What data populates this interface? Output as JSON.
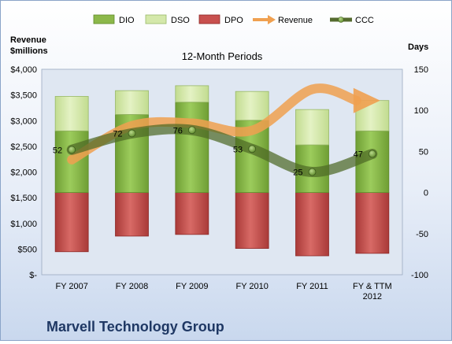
{
  "company": "Marvell Technology Group",
  "chart_data": {
    "type": "bar",
    "title": "12-Month Periods",
    "y_left_label": [
      "Revenue",
      "$millions"
    ],
    "y_right_label": "Days",
    "categories": [
      [
        "FY 2007"
      ],
      [
        "FY 2008"
      ],
      [
        "FY 2009"
      ],
      [
        "FY 2010"
      ],
      [
        "FY 2011"
      ],
      [
        "FY & TTM",
        "2012"
      ]
    ],
    "y_left_range": [
      0,
      4000
    ],
    "y_left_ticks": [
      {
        "v": 0,
        "label": "$-"
      },
      {
        "v": 500,
        "label": "$500"
      },
      {
        "v": 1000,
        "label": "$1,000"
      },
      {
        "v": 1500,
        "label": "$1,500"
      },
      {
        "v": 2000,
        "label": "$2,000"
      },
      {
        "v": 2500,
        "label": "$2,500"
      },
      {
        "v": 3000,
        "label": "$3,000"
      },
      {
        "v": 3500,
        "label": "$3,500"
      },
      {
        "v": 4000,
        "label": "$4,000"
      }
    ],
    "y_right_range": [
      -100,
      150
    ],
    "y_right_ticks": [
      {
        "v": -100,
        "label": "-100"
      },
      {
        "v": -50,
        "label": "-50"
      },
      {
        "v": 0,
        "label": "0"
      },
      {
        "v": 50,
        "label": "50"
      },
      {
        "v": 100,
        "label": "100"
      },
      {
        "v": 150,
        "label": "150"
      }
    ],
    "legend_position": "top",
    "legend": [
      {
        "name": "DIO",
        "kind": "bar",
        "color": "#8cb84a",
        "border": "#5e8a2a"
      },
      {
        "name": "DSO",
        "kind": "bar",
        "color": "#d4e8aa",
        "border": "#98b868"
      },
      {
        "name": "DPO",
        "kind": "bar",
        "color": "#c8504e",
        "border": "#8e2a28"
      },
      {
        "name": "Revenue",
        "kind": "arrow",
        "color": "#f0a050"
      },
      {
        "name": "CCC",
        "kind": "line",
        "color": "#556b2f"
      }
    ],
    "series": [
      {
        "name": "DIO",
        "axis": "right",
        "values": [
          75,
          95,
          110,
          88,
          58,
          75
        ]
      },
      {
        "name": "DSO",
        "axis": "right",
        "values": [
          42,
          29,
          20,
          35,
          43,
          37
        ]
      },
      {
        "name": "DPO",
        "axis": "right",
        "values": [
          -72,
          -53,
          -51,
          -68,
          -77,
          -74
        ]
      },
      {
        "name": "Revenue",
        "axis": "left",
        "values": [
          2240,
          2900,
          2950,
          2810,
          3610,
          3390
        ]
      },
      {
        "name": "CCC",
        "axis": "right",
        "values": [
          52,
          72,
          76,
          53,
          25,
          47
        ]
      }
    ],
    "ccc_labels": [
      "52",
      "72",
      "76",
      "53",
      "25",
      "47"
    ],
    "grid": false
  }
}
